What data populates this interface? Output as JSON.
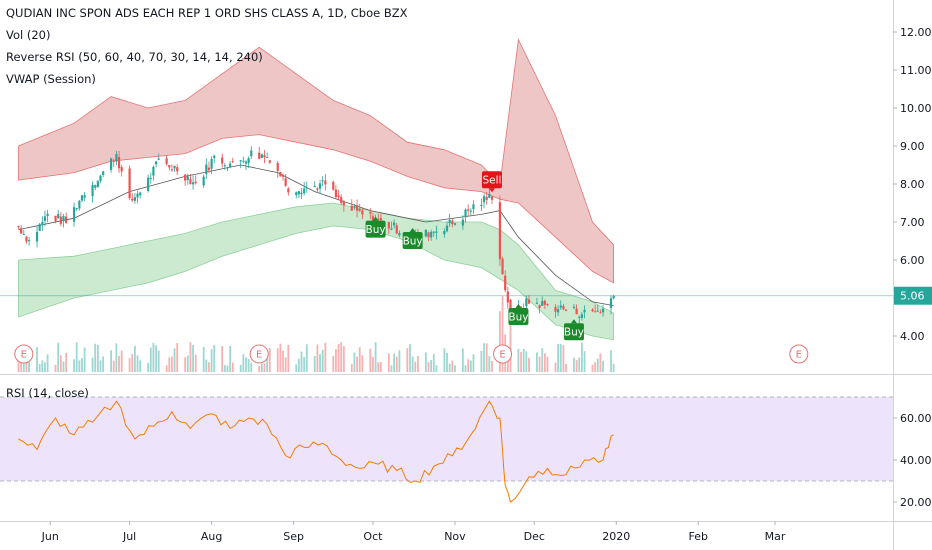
{
  "header": {
    "title": "QUDIAN INC SPON ADS EACH REP 1 ORD SHS CLASS A, 1D, Cboe BZX",
    "indicators": [
      "Vol (20)",
      "Reverse RSI (50, 60, 40, 70, 30, 14, 14, 240)",
      "VWAP (Session)"
    ],
    "rsi_label": "RSI (14, close)"
  },
  "price_badge": "5.06",
  "colors": {
    "up": "#26a69a",
    "down": "#ef5350",
    "band_red": "#e8b3b3",
    "band_green": "#b9e3c0",
    "vwap": "#555555",
    "rsi_line": "#f57c00",
    "rsi_bg": "#ede4fb",
    "buy": "#1b8a2a",
    "sell": "#e0161b",
    "last_price": "#26a69a"
  },
  "chart_data": [
    {
      "type": "candlestick",
      "title": "QUDIAN INC SPON ADS EACH REP 1 ORD SHS CLASS A, 1D, Cboe BZX",
      "y_axis": {
        "ticks": [
          "12.00",
          "11.00",
          "10.00",
          "9.00",
          "8.00",
          "7.00",
          "6.00",
          "5.00",
          "4.00"
        ],
        "ylim": [
          3.2,
          12.6
        ]
      },
      "x_axis": {
        "ticks": [
          "Jun",
          "Jul",
          "Aug",
          "Sep",
          "Oct",
          "Nov",
          "Dec",
          "2020",
          "Feb",
          "Mar"
        ]
      },
      "last_price": 5.06,
      "close_path": [
        {
          "d": "2019-05-20",
          "c": 6.9
        },
        {
          "d": "2019-05-24",
          "c": 6.5
        },
        {
          "d": "2019-05-31",
          "c": 7.2
        },
        {
          "d": "2019-06-07",
          "c": 7.0
        },
        {
          "d": "2019-06-14",
          "c": 7.8
        },
        {
          "d": "2019-06-21",
          "c": 8.3
        },
        {
          "d": "2019-06-26",
          "c": 8.8
        },
        {
          "d": "2019-07-01",
          "c": 7.5
        },
        {
          "d": "2019-07-08",
          "c": 8.1
        },
        {
          "d": "2019-07-12",
          "c": 8.6
        },
        {
          "d": "2019-07-19",
          "c": 8.4
        },
        {
          "d": "2019-07-26",
          "c": 8.0
        },
        {
          "d": "2019-08-02",
          "c": 8.7
        },
        {
          "d": "2019-08-09",
          "c": 8.5
        },
        {
          "d": "2019-08-16",
          "c": 8.8
        },
        {
          "d": "2019-08-23",
          "c": 8.7
        },
        {
          "d": "2019-08-30",
          "c": 7.9
        },
        {
          "d": "2019-09-06",
          "c": 7.9
        },
        {
          "d": "2019-09-13",
          "c": 8.0
        },
        {
          "d": "2019-09-20",
          "c": 7.4
        },
        {
          "d": "2019-09-27",
          "c": 7.2
        },
        {
          "d": "2019-10-04",
          "c": 7.0
        },
        {
          "d": "2019-10-11",
          "c": 6.8
        },
        {
          "d": "2019-10-18",
          "c": 6.6
        },
        {
          "d": "2019-10-25",
          "c": 6.8
        },
        {
          "d": "2019-11-01",
          "c": 7.0
        },
        {
          "d": "2019-11-08",
          "c": 7.4
        },
        {
          "d": "2019-11-15",
          "c": 7.7
        },
        {
          "d": "2019-11-19",
          "c": 5.6
        },
        {
          "d": "2019-11-22",
          "c": 4.6
        },
        {
          "d": "2019-11-29",
          "c": 4.9
        },
        {
          "d": "2019-12-06",
          "c": 4.8
        },
        {
          "d": "2019-12-13",
          "c": 4.7
        },
        {
          "d": "2019-12-20",
          "c": 4.6
        },
        {
          "d": "2019-12-27",
          "c": 4.7
        },
        {
          "d": "2019-12-31",
          "c": 5.06
        }
      ],
      "upper_band": [
        {
          "d": "2019-05-20",
          "lo": 8.1,
          "hi": 9.0
        },
        {
          "d": "2019-06-10",
          "lo": 8.3,
          "hi": 9.6
        },
        {
          "d": "2019-06-24",
          "lo": 8.6,
          "hi": 10.3
        },
        {
          "d": "2019-07-08",
          "lo": 8.7,
          "hi": 10.0
        },
        {
          "d": "2019-07-22",
          "lo": 8.8,
          "hi": 10.2
        },
        {
          "d": "2019-08-05",
          "lo": 9.2,
          "hi": 10.9
        },
        {
          "d": "2019-08-19",
          "lo": 9.3,
          "hi": 11.6
        },
        {
          "d": "2019-09-02",
          "lo": 9.1,
          "hi": 10.9
        },
        {
          "d": "2019-09-16",
          "lo": 8.9,
          "hi": 10.2
        },
        {
          "d": "2019-09-30",
          "lo": 8.6,
          "hi": 9.8
        },
        {
          "d": "2019-10-14",
          "lo": 8.2,
          "hi": 9.1
        },
        {
          "d": "2019-10-28",
          "lo": 7.9,
          "hi": 8.9
        },
        {
          "d": "2019-11-11",
          "lo": 7.8,
          "hi": 8.5
        },
        {
          "d": "2019-11-18",
          "lo": 7.6,
          "hi": 8.0
        },
        {
          "d": "2019-11-25",
          "lo": 7.5,
          "hi": 11.8
        },
        {
          "d": "2019-12-09",
          "lo": 6.6,
          "hi": 9.8
        },
        {
          "d": "2019-12-23",
          "lo": 5.7,
          "hi": 7.0
        },
        {
          "d": "2019-12-31",
          "lo": 5.4,
          "hi": 6.4
        }
      ],
      "lower_band": [
        {
          "d": "2019-05-20",
          "lo": 4.5,
          "hi": 6.0
        },
        {
          "d": "2019-06-10",
          "lo": 5.0,
          "hi": 6.1
        },
        {
          "d": "2019-06-24",
          "lo": 5.2,
          "hi": 6.3
        },
        {
          "d": "2019-07-08",
          "lo": 5.4,
          "hi": 6.5
        },
        {
          "d": "2019-07-22",
          "lo": 5.7,
          "hi": 6.7
        },
        {
          "d": "2019-08-05",
          "lo": 6.1,
          "hi": 7.0
        },
        {
          "d": "2019-08-19",
          "lo": 6.4,
          "hi": 7.2
        },
        {
          "d": "2019-09-02",
          "lo": 6.7,
          "hi": 7.4
        },
        {
          "d": "2019-09-16",
          "lo": 6.9,
          "hi": 7.5
        },
        {
          "d": "2019-09-30",
          "lo": 6.8,
          "hi": 7.3
        },
        {
          "d": "2019-10-14",
          "lo": 6.5,
          "hi": 7.1
        },
        {
          "d": "2019-10-28",
          "lo": 6.0,
          "hi": 7.0
        },
        {
          "d": "2019-11-11",
          "lo": 5.8,
          "hi": 7.0
        },
        {
          "d": "2019-11-18",
          "lo": 5.5,
          "hi": 6.8
        },
        {
          "d": "2019-11-25",
          "lo": 5.2,
          "hi": 6.4
        },
        {
          "d": "2019-12-09",
          "lo": 4.3,
          "hi": 5.2
        },
        {
          "d": "2019-12-23",
          "lo": 4.0,
          "hi": 4.9
        },
        {
          "d": "2019-12-31",
          "lo": 3.9,
          "hi": 4.6
        }
      ],
      "vwap": [
        {
          "d": "2019-05-20",
          "v": 6.8
        },
        {
          "d": "2019-06-10",
          "v": 7.1
        },
        {
          "d": "2019-07-01",
          "v": 7.8
        },
        {
          "d": "2019-07-22",
          "v": 8.2
        },
        {
          "d": "2019-08-12",
          "v": 8.5
        },
        {
          "d": "2019-08-26",
          "v": 8.3
        },
        {
          "d": "2019-09-09",
          "v": 7.8
        },
        {
          "d": "2019-09-30",
          "v": 7.3
        },
        {
          "d": "2019-10-21",
          "v": 7.0
        },
        {
          "d": "2019-11-11",
          "v": 7.2
        },
        {
          "d": "2019-11-18",
          "v": 7.3
        },
        {
          "d": "2019-11-25",
          "v": 6.6
        },
        {
          "d": "2019-12-09",
          "v": 5.6
        },
        {
          "d": "2019-12-23",
          "v": 4.9
        },
        {
          "d": "2019-12-31",
          "v": 4.8
        }
      ],
      "signals": [
        {
          "label": "Sell",
          "d": "2019-11-15",
          "price": 8.1,
          "kind": "sell"
        },
        {
          "label": "Buy",
          "d": "2019-10-02",
          "price": 6.8,
          "kind": "buy"
        },
        {
          "label": "Buy",
          "d": "2019-10-16",
          "price": 6.5,
          "kind": "buy"
        },
        {
          "label": "Buy",
          "d": "2019-11-25",
          "price": 4.5,
          "kind": "buy"
        },
        {
          "label": "Buy",
          "d": "2019-12-16",
          "price": 4.1,
          "kind": "buy"
        }
      ],
      "earnings": [
        {
          "label": "E",
          "d": "2019-05-22"
        },
        {
          "label": "E",
          "d": "2019-08-19"
        },
        {
          "label": "E",
          "d": "2019-11-19"
        },
        {
          "label": "E",
          "d": "2020-03-10"
        }
      ]
    },
    {
      "type": "line",
      "title": "RSI (14, close)",
      "y_axis": {
        "ticks": [
          "60.00",
          "40.00",
          "20.00"
        ],
        "ylim": [
          15,
          75
        ]
      },
      "bands": {
        "upper": 70,
        "lower": 30
      },
      "series": [
        {
          "d": "2019-05-20",
          "v": 50
        },
        {
          "d": "2019-05-27",
          "v": 45
        },
        {
          "d": "2019-06-03",
          "v": 60
        },
        {
          "d": "2019-06-10",
          "v": 52
        },
        {
          "d": "2019-06-17",
          "v": 58
        },
        {
          "d": "2019-06-26",
          "v": 68
        },
        {
          "d": "2019-07-03",
          "v": 50
        },
        {
          "d": "2019-07-10",
          "v": 56
        },
        {
          "d": "2019-07-17",
          "v": 63
        },
        {
          "d": "2019-07-24",
          "v": 55
        },
        {
          "d": "2019-08-01",
          "v": 62
        },
        {
          "d": "2019-08-08",
          "v": 55
        },
        {
          "d": "2019-08-15",
          "v": 60
        },
        {
          "d": "2019-08-22",
          "v": 57
        },
        {
          "d": "2019-08-29",
          "v": 42
        },
        {
          "d": "2019-09-05",
          "v": 46
        },
        {
          "d": "2019-09-12",
          "v": 48
        },
        {
          "d": "2019-09-19",
          "v": 40
        },
        {
          "d": "2019-09-26",
          "v": 36
        },
        {
          "d": "2019-10-03",
          "v": 38
        },
        {
          "d": "2019-10-10",
          "v": 35
        },
        {
          "d": "2019-10-17",
          "v": 30
        },
        {
          "d": "2019-10-24",
          "v": 37
        },
        {
          "d": "2019-10-31",
          "v": 42
        },
        {
          "d": "2019-11-07",
          "v": 52
        },
        {
          "d": "2019-11-14",
          "v": 68
        },
        {
          "d": "2019-11-18",
          "v": 60
        },
        {
          "d": "2019-11-20",
          "v": 28
        },
        {
          "d": "2019-11-22",
          "v": 20
        },
        {
          "d": "2019-11-29",
          "v": 32
        },
        {
          "d": "2019-12-06",
          "v": 36
        },
        {
          "d": "2019-12-13",
          "v": 33
        },
        {
          "d": "2019-12-20",
          "v": 40
        },
        {
          "d": "2019-12-27",
          "v": 40
        },
        {
          "d": "2019-12-31",
          "v": 52
        }
      ]
    }
  ]
}
